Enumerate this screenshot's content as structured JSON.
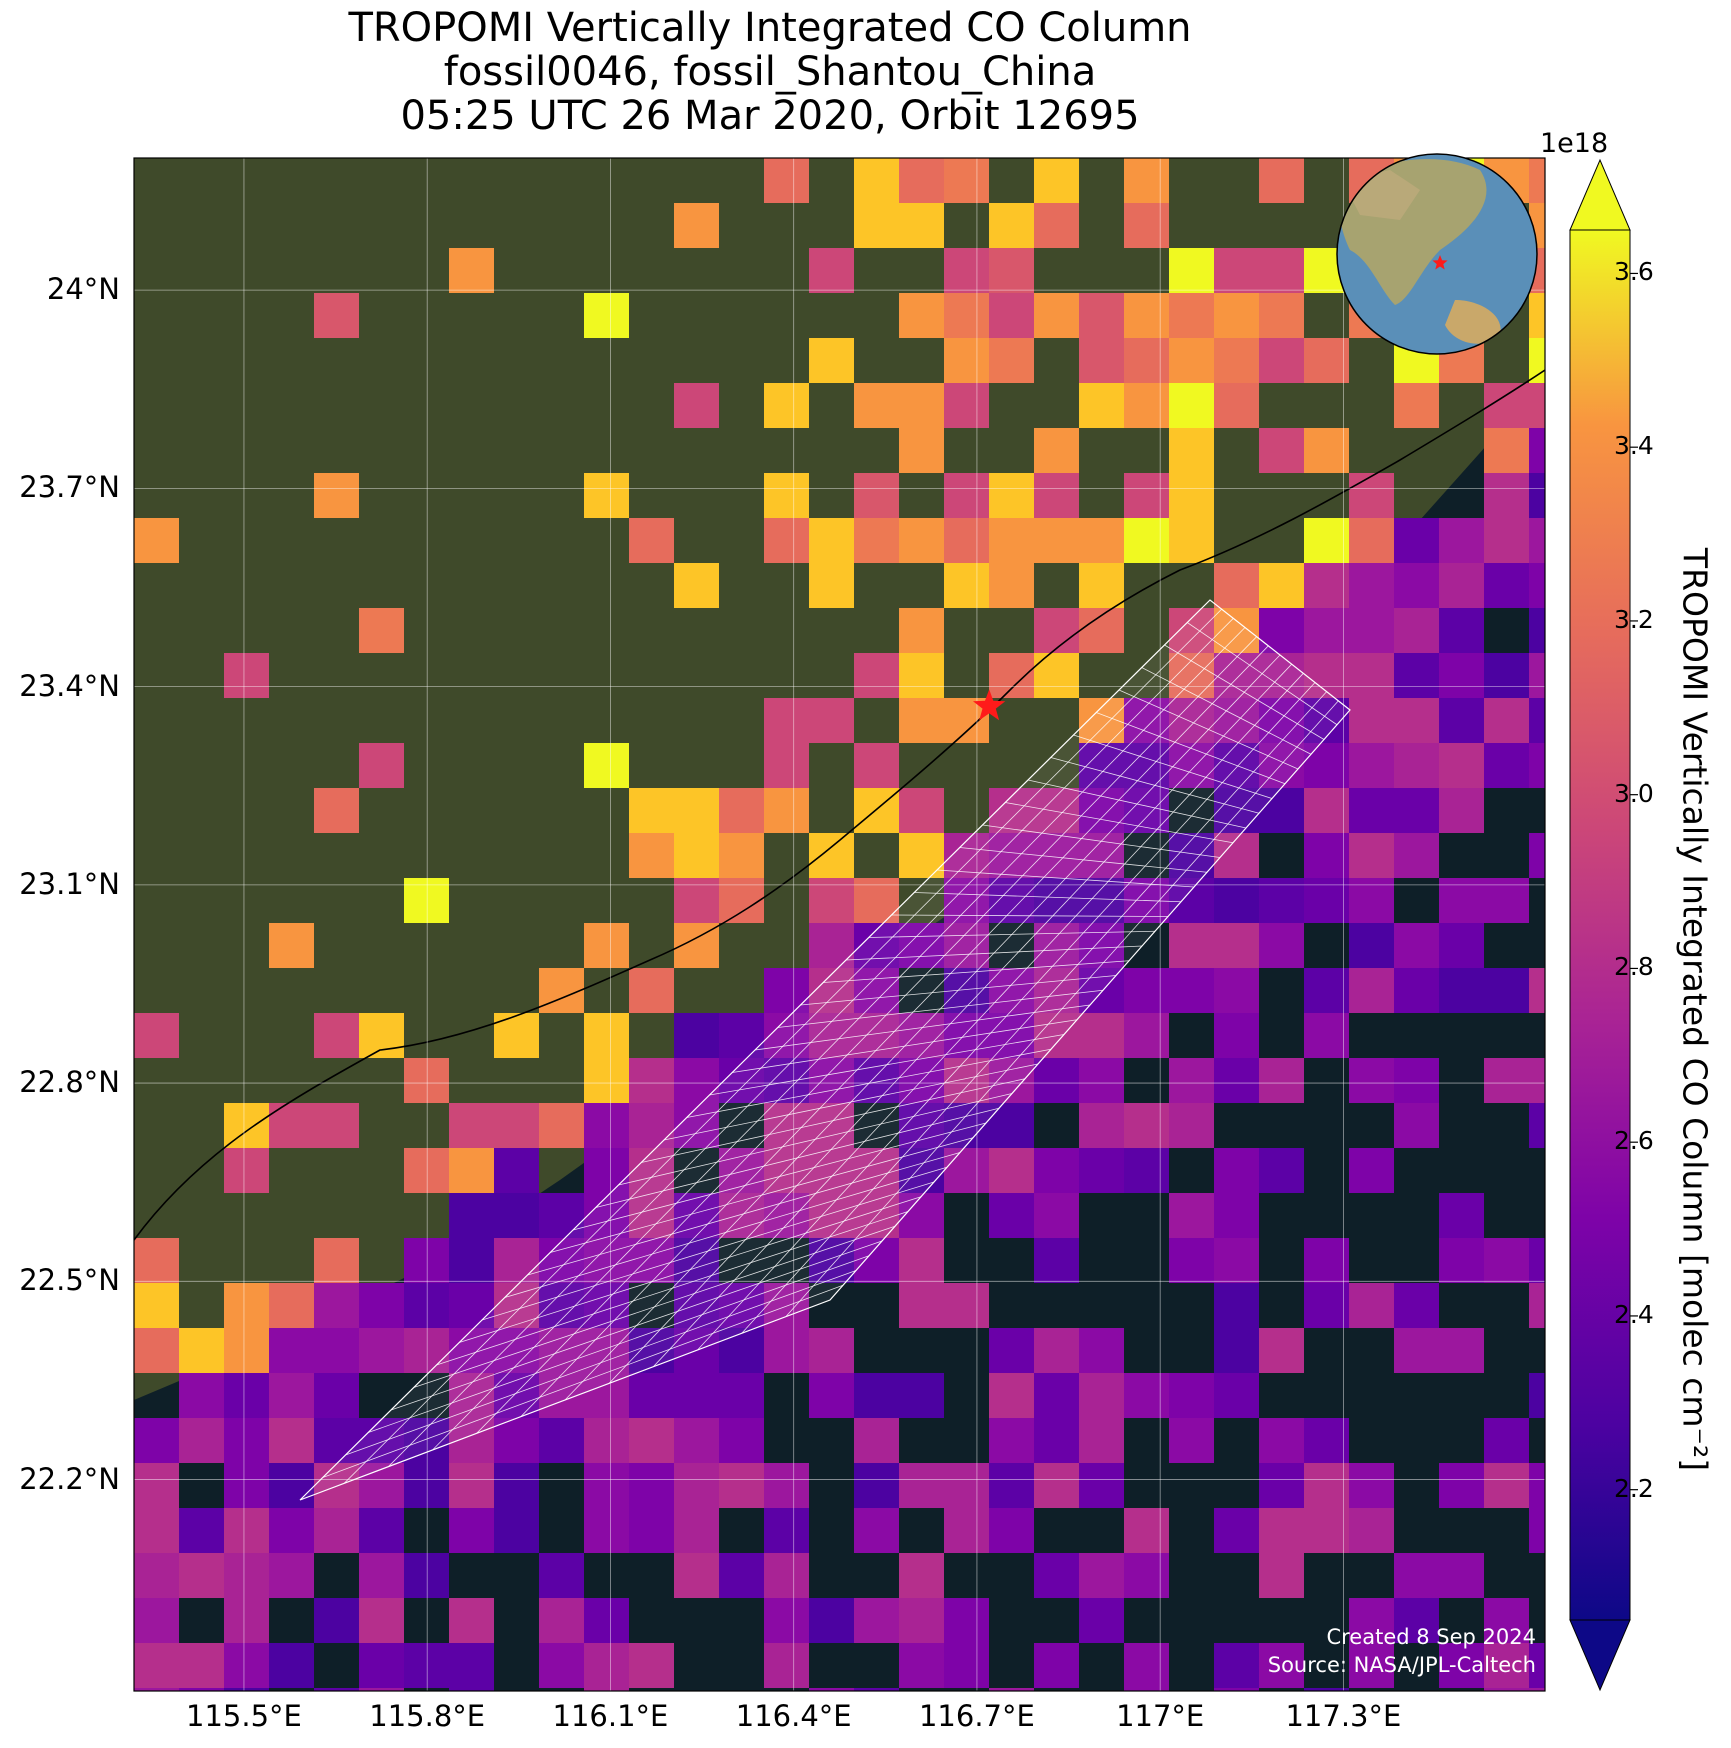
{
  "title": {
    "line1": "TROPOMI Vertically Integrated CO Column",
    "line2": "fossil0046, fossil_Shantou_China",
    "line3": "05:25 UTC 26 Mar 2020, Orbit 12695"
  },
  "map": {
    "lon_range": [
      115.32,
      117.63
    ],
    "lat_range": [
      21.88,
      24.2
    ],
    "lat_ticks": [
      "24°N",
      "23.7°N",
      "23.4°N",
      "23.1°N",
      "22.8°N",
      "22.5°N",
      "22.2°N"
    ],
    "lat_values": [
      24.0,
      23.7,
      23.4,
      23.1,
      22.8,
      22.5,
      22.2
    ],
    "lon_ticks": [
      "115.5°E",
      "115.8°E",
      "116.1°E",
      "116.4°E",
      "116.7°E",
      "117°E",
      "117.3°E"
    ],
    "lon_values": [
      115.5,
      115.8,
      116.1,
      116.4,
      116.7,
      117.0,
      117.3
    ],
    "grid": true,
    "site_marker": {
      "lon": 116.72,
      "lat": 23.37,
      "color": "#ff1a1a",
      "symbol": "star"
    },
    "land_color": "#3f4a2a",
    "sea_color": "#0e1f28",
    "target_overlay": "white-outline-grid"
  },
  "colorbar": {
    "label": "TROPOMI Vertically Integrated CO Column [molec cm⁻²]",
    "multiplier": "1e18",
    "min": 2.05,
    "max": 3.65,
    "ticks": [
      "2.2",
      "2.4",
      "2.6",
      "2.8",
      "3.0",
      "3.2",
      "3.4",
      "3.6"
    ],
    "tick_values": [
      2.2,
      2.4,
      2.6,
      2.8,
      3.0,
      3.2,
      3.4,
      3.6
    ],
    "colormap": "plasma",
    "extend": "both"
  },
  "inset_globe": {
    "marker_color": "#ff1a1a"
  },
  "credits": {
    "created": "Created 8 Sep 2024",
    "source": "Source: NASA/JPL-Caltech"
  }
}
